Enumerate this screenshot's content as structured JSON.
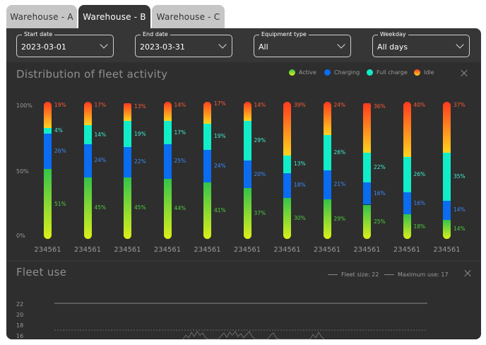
{
  "tabs": [
    {
      "label": "Warehouse - A",
      "active": false
    },
    {
      "label": "Warehouse - B",
      "active": true
    },
    {
      "label": "Warehouse - C",
      "active": false
    }
  ],
  "filters": [
    {
      "label": "Start date",
      "value": "2023-03-01"
    },
    {
      "label": "End date",
      "value": "2023-03-31"
    },
    {
      "label": "Equipment type",
      "value": "All"
    },
    {
      "label": "Weekday",
      "value": "All days"
    }
  ],
  "distribution": {
    "title": "Distribution of fleet activity",
    "expand_icon": "expand-icon",
    "legend": [
      {
        "key": "active",
        "label": "Active",
        "color": "#8fd42b"
      },
      {
        "key": "charging",
        "label": "Charging",
        "color": "#0a6cf0"
      },
      {
        "key": "full",
        "label": "Full charge",
        "color": "#10edc8"
      },
      {
        "key": "idle",
        "label": "Idle",
        "color": "#ff7a1f"
      }
    ],
    "y_ticks": [
      "100%",
      "50%",
      "0%"
    ]
  },
  "chart_data": {
    "type": "bar",
    "stacked": true,
    "categories": [
      "234561",
      "234561",
      "234561",
      "234561",
      "234561",
      "234561",
      "234561",
      "234561",
      "234561",
      "234561",
      "234561"
    ],
    "series": [
      {
        "name": "Active",
        "values": [
          51,
          45,
          45,
          44,
          41,
          37,
          30,
          29,
          25,
          18,
          14
        ]
      },
      {
        "name": "Charging",
        "values": [
          26,
          24,
          22,
          25,
          24,
          20,
          18,
          21,
          16,
          16,
          14
        ]
      },
      {
        "name": "Full charge",
        "values": [
          4,
          14,
          19,
          17,
          19,
          29,
          13,
          26,
          22,
          26,
          35
        ]
      },
      {
        "name": "Idle",
        "values": [
          19,
          17,
          13,
          14,
          17,
          14,
          39,
          24,
          36,
          40,
          37
        ]
      }
    ],
    "ylim": [
      0,
      100
    ],
    "legend_position": "top-right"
  },
  "fleet": {
    "title": "Fleet use",
    "legend": [
      {
        "label": "Fleet size: 22"
      },
      {
        "label": "Maximum use: 17"
      }
    ],
    "y_ticks": [
      "22",
      "20",
      "18",
      "16"
    ],
    "expand_icon": "expand-icon"
  }
}
